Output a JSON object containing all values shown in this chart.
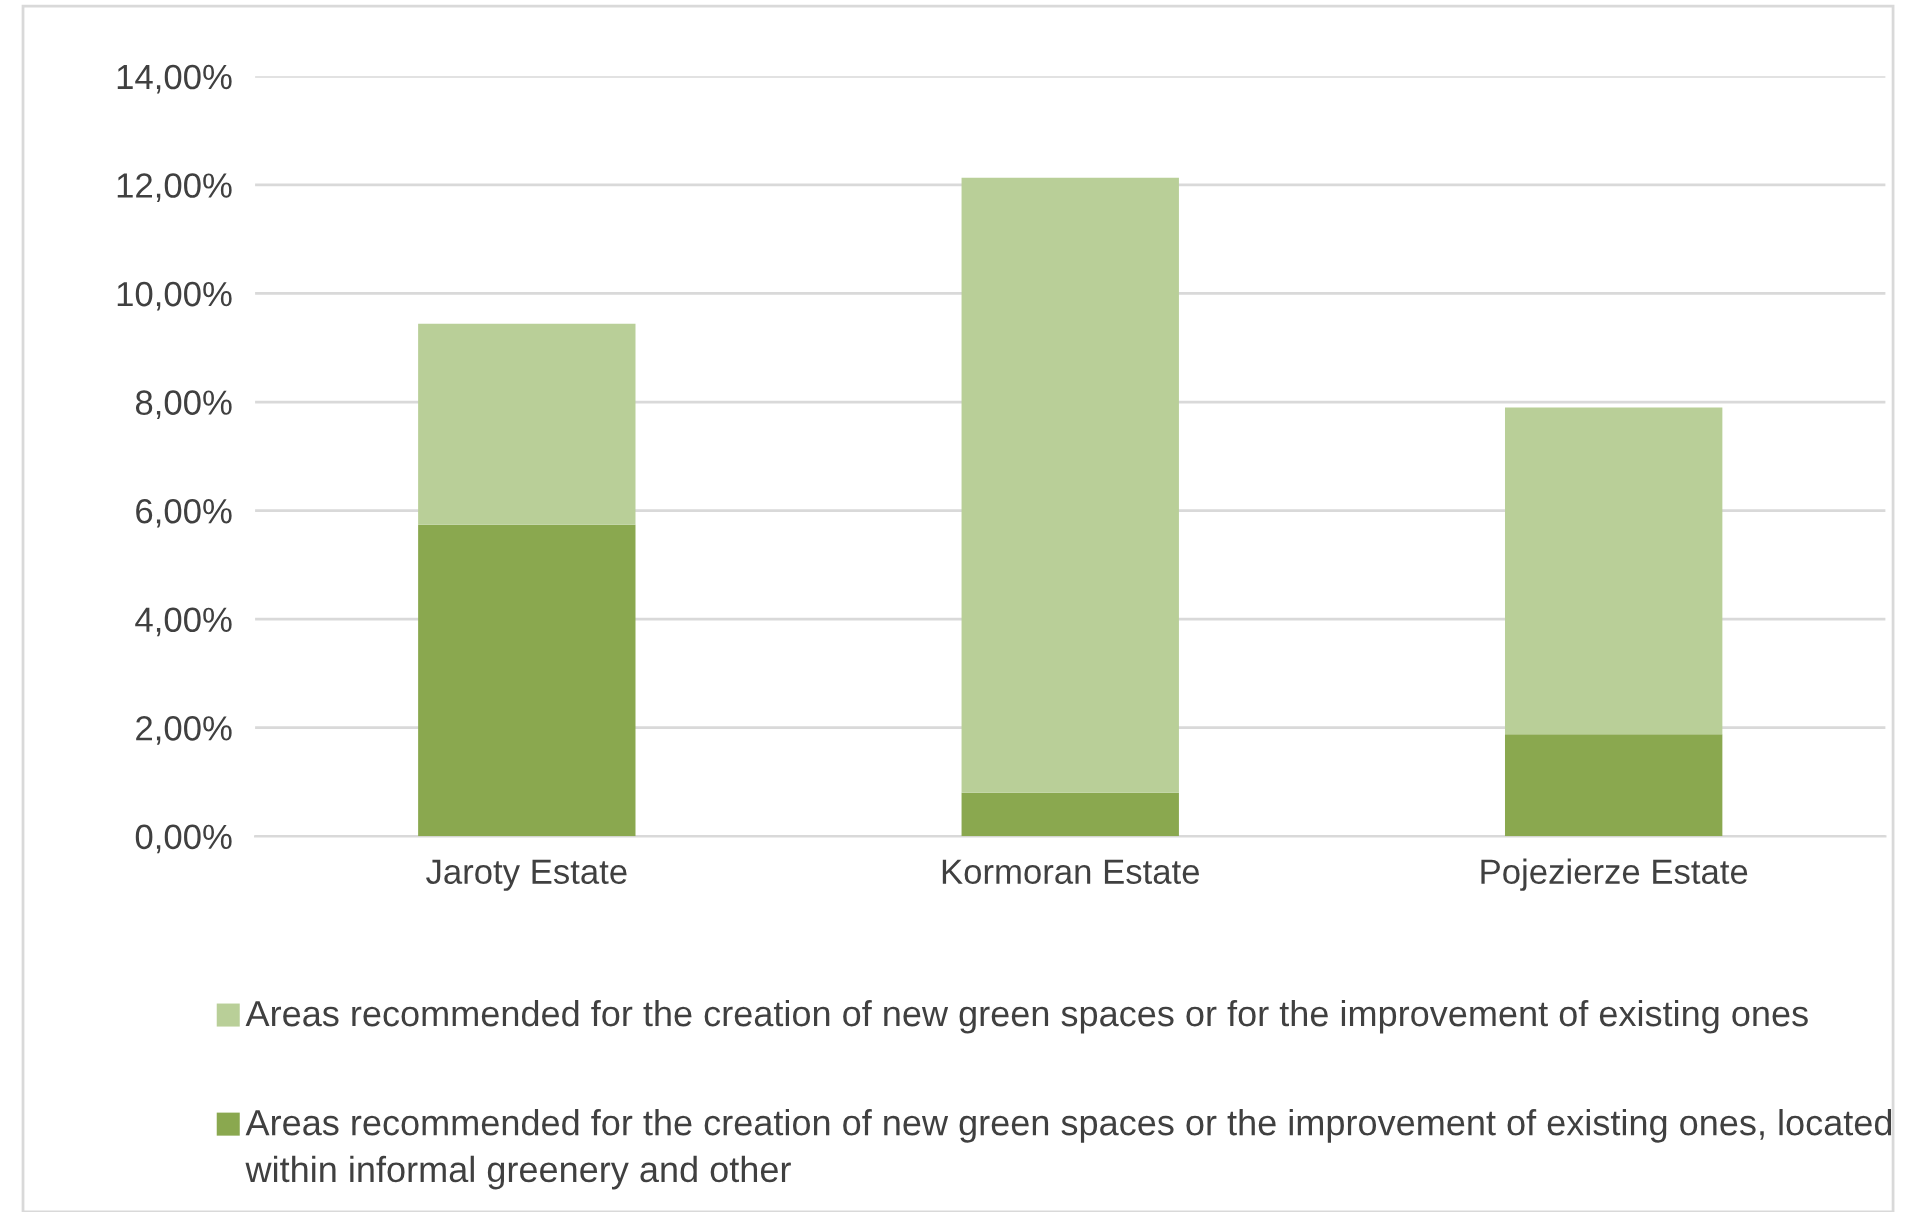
{
  "chart_data": {
    "type": "bar",
    "stacked": true,
    "categories": [
      "Jaroty Estate",
      "Kormoran Estate",
      "Pojezierze Estate"
    ],
    "series": [
      {
        "name": "Areas recommended for the creation of new green spaces or the improvement of existing ones, located within informal greenery and other",
        "color": "#8aa84f",
        "values": [
          5.74,
          0.8,
          1.88
        ]
      },
      {
        "name": "Areas recommended for the creation of new green spaces or for the improvement of existing ones",
        "color": "#b9cf98",
        "values": [
          3.7,
          11.33,
          6.02
        ]
      }
    ],
    "ylim": [
      0,
      14
    ],
    "yticks": [
      {
        "value": 0,
        "label": "0,00%"
      },
      {
        "value": 2,
        "label": "2,00%"
      },
      {
        "value": 4,
        "label": "4,00%"
      },
      {
        "value": 6,
        "label": "6,00%"
      },
      {
        "value": 8,
        "label": "8,00%"
      },
      {
        "value": 10,
        "label": "10,00%"
      },
      {
        "value": 12,
        "label": "12,00%"
      },
      {
        "value": 14,
        "label": "14,00%"
      }
    ],
    "grid": "y",
    "legend": "bottom"
  }
}
